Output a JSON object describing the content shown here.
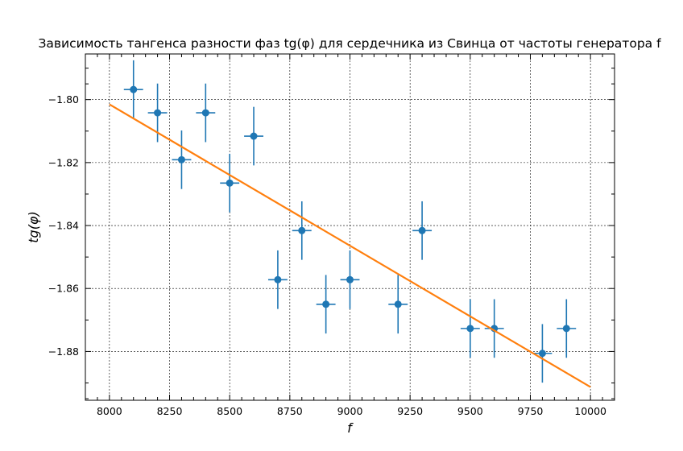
{
  "chart_data": {
    "type": "scatter",
    "title": "Зависимость тангенса разности фаз tg(φ) для сердечника из Свинца от частоты генератора f",
    "xlabel": "f",
    "ylabel": "tg(φ)",
    "xlim": [
      7900,
      10100
    ],
    "ylim": [
      -1.8955,
      -1.7855
    ],
    "xticks": [
      8000,
      8250,
      8500,
      8750,
      9000,
      9250,
      9500,
      9750,
      10000
    ],
    "yticks": [
      -1.8,
      -1.82,
      -1.84,
      -1.86,
      -1.88
    ],
    "xtick_labels": [
      "8000",
      "8250",
      "8500",
      "8750",
      "9000",
      "9250",
      "9500",
      "9750",
      "10000"
    ],
    "ytick_labels": [
      "−1.80",
      "−1.82",
      "−1.84",
      "−1.86",
      "−1.88"
    ],
    "grid": true,
    "series": [
      {
        "kind": "errorbar",
        "color": "#1f77b4",
        "x": [
          8100,
          8200,
          8300,
          8400,
          8500,
          8600,
          8700,
          8800,
          8900,
          9000,
          9200,
          9300,
          9500,
          9600,
          9800,
          9900
        ],
        "y": [
          -1.7968,
          -1.8042,
          -1.8191,
          -1.8042,
          -1.8265,
          -1.8116,
          -1.8572,
          -1.8416,
          -1.865,
          -1.8572,
          -1.865,
          -1.8416,
          -1.8727,
          -1.8727,
          -1.8806,
          -1.8727
        ],
        "xerr": 40,
        "yerr": 0.0093
      },
      {
        "kind": "fit-line",
        "color": "#ff7f0e",
        "x": [
          8000,
          10000
        ],
        "y": [
          -1.8015,
          -1.8913
        ]
      }
    ]
  }
}
